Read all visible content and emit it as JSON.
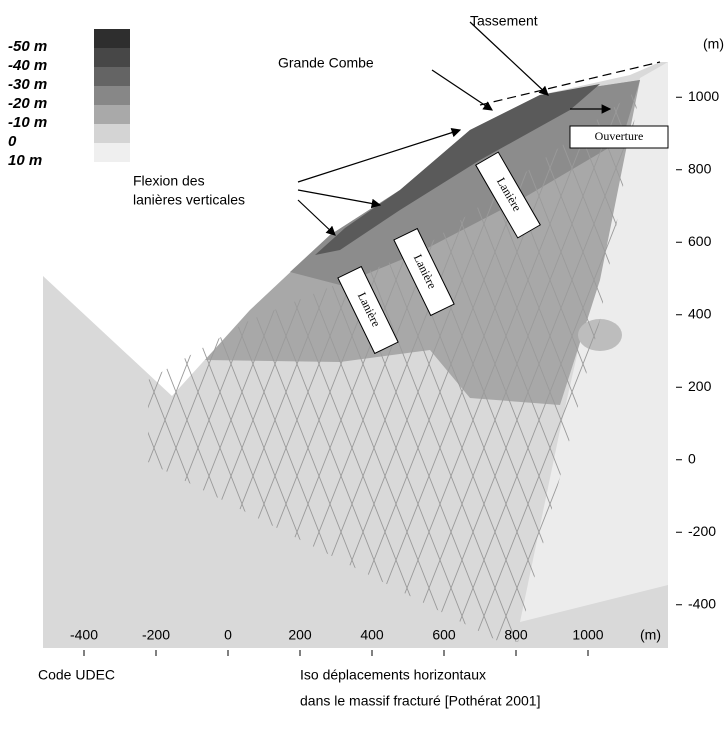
{
  "chart_data": {
    "type": "contour",
    "xlim": [
      -500,
      1200
    ],
    "ylim": [
      -500,
      1100
    ],
    "xticks": [
      -400,
      -200,
      0,
      200,
      400,
      600,
      800,
      1000
    ],
    "yticks": [
      -400,
      -200,
      0,
      200,
      400,
      600,
      800,
      1000
    ],
    "x_unit": "(m)",
    "y_unit": "(m)",
    "legend": {
      "labels": [
        "-50 m",
        "-40 m",
        "-30 m",
        "-20 m",
        "-10 m",
        "0",
        "10 m"
      ],
      "colors": [
        "#2e2e2e",
        "#474747",
        "#646464",
        "#878787",
        "#a9a9a9",
        "#d4d4d4",
        "#efefef"
      ]
    },
    "annotations": [
      "Tassement",
      "Grande Combe",
      "Ouverture",
      "Flexion des",
      "lanières verticales",
      "Lanière",
      "Lanière",
      "Lanière"
    ],
    "captions": [
      "Code UDEC",
      "Iso déplacements horizontaux",
      "dans le massif fracturé [Pothérat 2001]"
    ]
  }
}
